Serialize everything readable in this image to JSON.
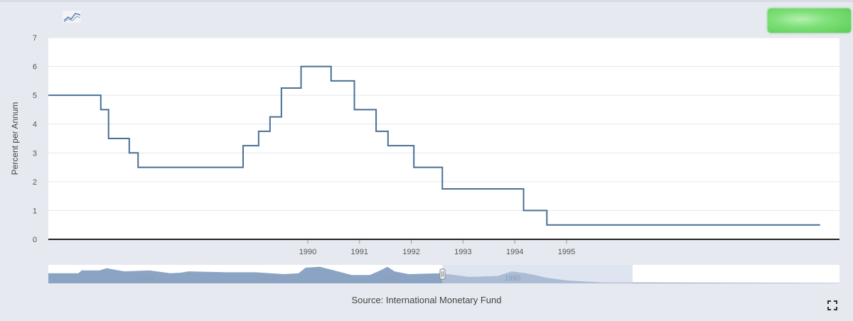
{
  "source_text": "Source: International Monetary Fund",
  "colors": {
    "series_line": "#4a6f94",
    "navigator_fill": "#8ca4c4",
    "navigator_selection": "#c4d0e4",
    "green_button": "#6fd66a"
  },
  "icons": {
    "logo": "chart-logo-icon",
    "fullscreen": "fullscreen-icon"
  },
  "navigator": {
    "tick_labels": [
      "1960",
      "1970",
      "1980",
      "1990"
    ]
  },
  "chart_data": {
    "type": "line",
    "step": true,
    "title": "",
    "xlabel": "",
    "ylabel": "Percent per Annum",
    "ylim": [
      0,
      7
    ],
    "yticks": [
      0,
      1,
      2,
      3,
      4,
      5,
      6,
      7
    ],
    "xticks": [
      "1990",
      "1991",
      "1992",
      "1993",
      "1994",
      "1995"
    ],
    "grid": true,
    "series": [
      {
        "points": [
          [
            1985.1,
            5.0
          ],
          [
            1986.0,
            4.5
          ],
          [
            1986.15,
            3.5
          ],
          [
            1986.55,
            3.0
          ],
          [
            1986.72,
            2.5
          ],
          [
            1988.75,
            3.25
          ],
          [
            1989.05,
            3.75
          ],
          [
            1989.27,
            4.25
          ],
          [
            1989.49,
            5.25
          ],
          [
            1989.87,
            6.0
          ],
          [
            1990.45,
            5.5
          ],
          [
            1990.9,
            4.5
          ],
          [
            1991.32,
            3.75
          ],
          [
            1991.55,
            3.25
          ],
          [
            1992.05,
            2.5
          ],
          [
            1992.6,
            1.75
          ],
          [
            1994.17,
            1.0
          ],
          [
            1994.62,
            0.5
          ],
          [
            1999.9,
            0.5
          ]
        ]
      }
    ]
  }
}
